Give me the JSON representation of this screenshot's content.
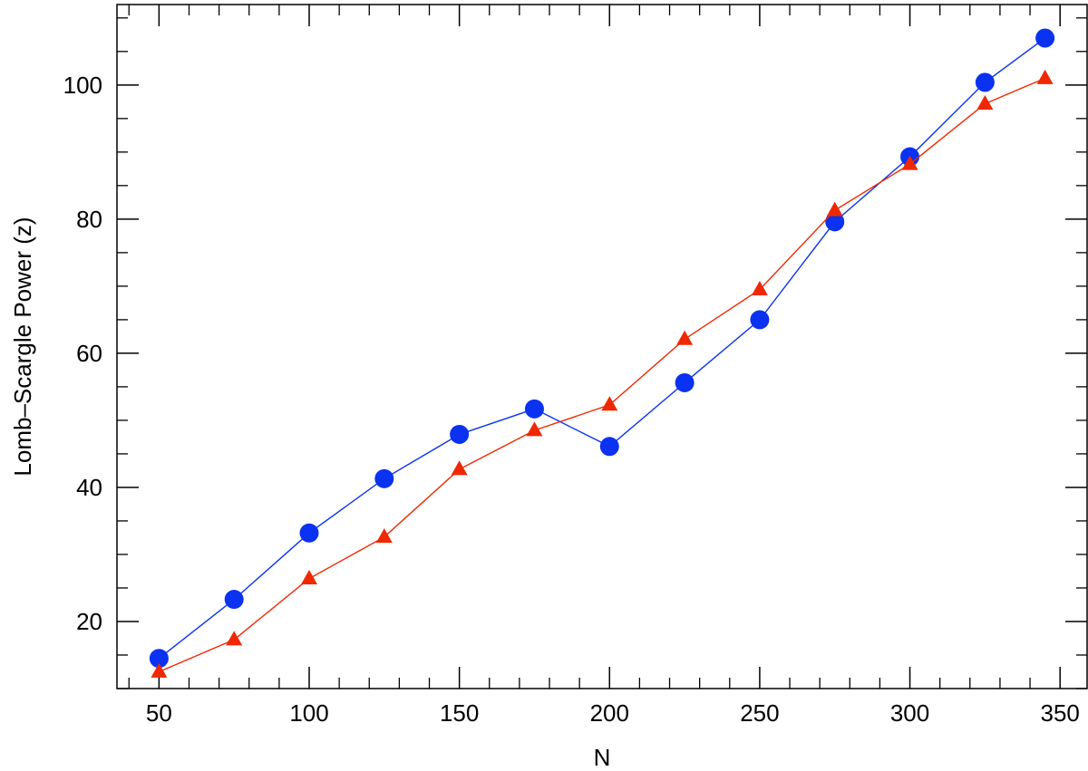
{
  "chart_data": {
    "type": "line",
    "title": "",
    "xlabel": "N",
    "ylabel": "Lomb–Scargle Power (z)",
    "xlim": [
      36,
      359
    ],
    "ylim": [
      10,
      112
    ],
    "xticks": [
      50,
      100,
      150,
      200,
      250,
      300,
      350
    ],
    "yticks": [
      20,
      40,
      60,
      80,
      100
    ],
    "xtick_labels": [
      "50",
      "100",
      "150",
      "200",
      "250",
      "300",
      "350"
    ],
    "ytick_labels": [
      "20",
      "40",
      "60",
      "80",
      "100"
    ],
    "x_minor_step": 10,
    "y_minor_step": 5,
    "grid": false,
    "legend": "none",
    "series": [
      {
        "marker": "circle",
        "color": "#0a32f0",
        "x": [
          50,
          75,
          100,
          125,
          150,
          175,
          200,
          225,
          250,
          275,
          300,
          325,
          345
        ],
        "y": [
          14.5,
          23.3,
          33.2,
          41.3,
          47.9,
          51.7,
          46.1,
          55.6,
          65.0,
          79.6,
          89.3,
          100.4,
          107.0
        ]
      },
      {
        "marker": "triangle",
        "color": "#f02800",
        "x": [
          50,
          75,
          100,
          125,
          150,
          175,
          200,
          225,
          250,
          275,
          300,
          325,
          345
        ],
        "y": [
          12.5,
          17.3,
          26.4,
          32.6,
          42.7,
          48.5,
          52.3,
          62.1,
          69.5,
          81.3,
          88.2,
          97.2,
          101.0
        ]
      }
    ]
  }
}
